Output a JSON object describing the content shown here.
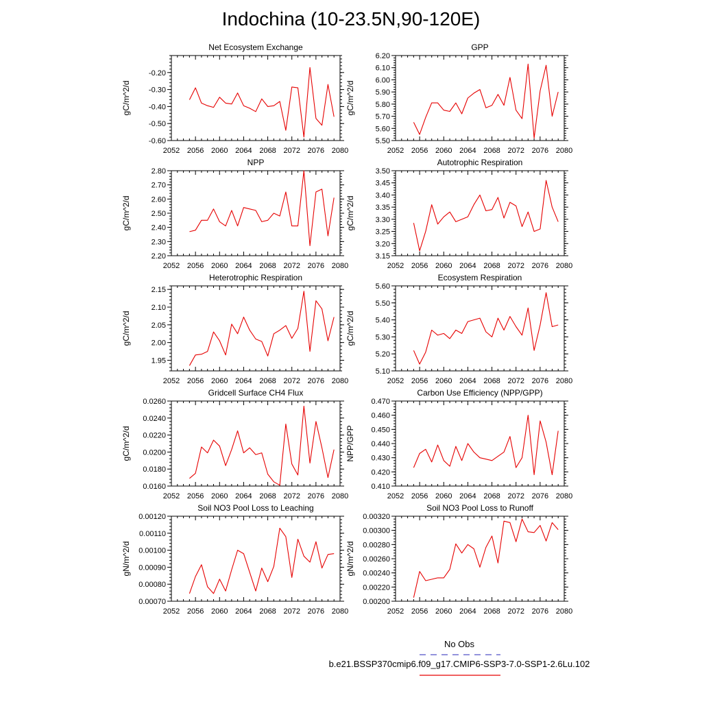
{
  "title": "Indochina (10-23.5N,90-120E)",
  "legend": {
    "obs_label": "No Obs",
    "obs_color": "#5050c8",
    "case_label": "b.e21.BSSP370cmip6.f09_g17.CMIP6-SSP3-7.0-SSP1-2.6Lu.102",
    "case_color": "#e60000"
  },
  "chart_data": [
    {
      "type": "line",
      "title": "Net Ecosystem Exchange",
      "ylabel": "gC/m^2/d",
      "xlim": [
        2052,
        2080
      ],
      "xticks": [
        "2052",
        "2056",
        "2060",
        "2064",
        "2068",
        "2072",
        "2076",
        "2080"
      ],
      "ylim": [
        -0.6,
        -0.1
      ],
      "yticks": [
        "-0.60",
        "-0.50",
        "-0.40",
        "-0.30",
        "-0.20"
      ],
      "x": [
        2055,
        2056,
        2057,
        2058,
        2059,
        2060,
        2061,
        2062,
        2063,
        2064,
        2065,
        2066,
        2067,
        2068,
        2069,
        2070,
        2071,
        2072,
        2073,
        2074,
        2075,
        2076,
        2077,
        2078,
        2079
      ],
      "series": [
        {
          "color": "#e60000",
          "values": [
            -0.36,
            -0.29,
            -0.38,
            -0.395,
            -0.405,
            -0.345,
            -0.38,
            -0.385,
            -0.32,
            -0.395,
            -0.41,
            -0.43,
            -0.355,
            -0.4,
            -0.395,
            -0.37,
            -0.54,
            -0.285,
            -0.29,
            -0.58,
            -0.17,
            -0.47,
            -0.51,
            -0.27,
            -0.46
          ]
        }
      ]
    },
    {
      "type": "line",
      "title": "GPP",
      "ylabel": "gC/m^2/d",
      "xlim": [
        2052,
        2080
      ],
      "xticks": [
        "2052",
        "2056",
        "2060",
        "2064",
        "2068",
        "2072",
        "2076",
        "2080"
      ],
      "ylim": [
        5.5,
        6.2
      ],
      "yticks": [
        "5.50",
        "5.60",
        "5.70",
        "5.80",
        "5.90",
        "6.00",
        "6.10",
        "6.20"
      ],
      "x": [
        2055,
        2056,
        2057,
        2058,
        2059,
        2060,
        2061,
        2062,
        2063,
        2064,
        2065,
        2066,
        2067,
        2068,
        2069,
        2070,
        2071,
        2072,
        2073,
        2074,
        2075,
        2076,
        2077,
        2078,
        2079
      ],
      "series": [
        {
          "color": "#e60000",
          "values": [
            5.65,
            5.55,
            5.69,
            5.81,
            5.81,
            5.75,
            5.74,
            5.81,
            5.72,
            5.85,
            5.89,
            5.92,
            5.77,
            5.79,
            5.88,
            5.79,
            6.02,
            5.75,
            5.68,
            6.13,
            5.52,
            5.91,
            6.12,
            5.7,
            5.9
          ]
        }
      ]
    },
    {
      "type": "line",
      "title": "NPP",
      "ylabel": "gC/m^2/d",
      "xlim": [
        2052,
        2080
      ],
      "xticks": [
        "2052",
        "2056",
        "2060",
        "2064",
        "2068",
        "2072",
        "2076",
        "2080"
      ],
      "ylim": [
        2.2,
        2.8
      ],
      "yticks": [
        "2.20",
        "2.30",
        "2.40",
        "2.50",
        "2.60",
        "2.70",
        "2.80"
      ],
      "x": [
        2055,
        2056,
        2057,
        2058,
        2059,
        2060,
        2061,
        2062,
        2063,
        2064,
        2065,
        2066,
        2067,
        2068,
        2069,
        2070,
        2071,
        2072,
        2073,
        2074,
        2075,
        2076,
        2077,
        2078,
        2079
      ],
      "series": [
        {
          "color": "#e60000",
          "values": [
            2.37,
            2.38,
            2.45,
            2.45,
            2.53,
            2.44,
            2.41,
            2.52,
            2.41,
            2.54,
            2.53,
            2.52,
            2.44,
            2.45,
            2.5,
            2.48,
            2.65,
            2.41,
            2.41,
            2.8,
            2.27,
            2.65,
            2.67,
            2.34,
            2.61
          ]
        }
      ]
    },
    {
      "type": "line",
      "title": "Autotrophic Respiration",
      "ylabel": "gC/m^2/d",
      "xlim": [
        2052,
        2080
      ],
      "xticks": [
        "2052",
        "2056",
        "2060",
        "2064",
        "2068",
        "2072",
        "2076",
        "2080"
      ],
      "ylim": [
        3.15,
        3.5
      ],
      "yticks": [
        "3.15",
        "3.20",
        "3.25",
        "3.30",
        "3.35",
        "3.40",
        "3.45",
        "3.50"
      ],
      "x": [
        2055,
        2056,
        2057,
        2058,
        2059,
        2060,
        2061,
        2062,
        2063,
        2064,
        2065,
        2066,
        2067,
        2068,
        2069,
        2070,
        2071,
        2072,
        2073,
        2074,
        2075,
        2076,
        2077,
        2078,
        2079
      ],
      "series": [
        {
          "color": "#e60000",
          "values": [
            3.285,
            3.17,
            3.25,
            3.36,
            3.28,
            3.31,
            3.33,
            3.29,
            3.3,
            3.31,
            3.36,
            3.4,
            3.335,
            3.34,
            3.39,
            3.305,
            3.37,
            3.355,
            3.27,
            3.33,
            3.25,
            3.26,
            3.46,
            3.35,
            3.29
          ]
        }
      ]
    },
    {
      "type": "line",
      "title": "Heterotrophic Respiration",
      "ylabel": "gC/m^2/d",
      "xlim": [
        2052,
        2080
      ],
      "xticks": [
        "2052",
        "2056",
        "2060",
        "2064",
        "2068",
        "2072",
        "2076",
        "2080"
      ],
      "ylim": [
        1.92,
        2.16
      ],
      "yticks": [
        "1.95",
        "2.00",
        "2.05",
        "2.10",
        "2.15"
      ],
      "x": [
        2055,
        2056,
        2057,
        2058,
        2059,
        2060,
        2061,
        2062,
        2063,
        2064,
        2065,
        2066,
        2067,
        2068,
        2069,
        2070,
        2071,
        2072,
        2073,
        2074,
        2075,
        2076,
        2077,
        2078,
        2079
      ],
      "series": [
        {
          "color": "#e60000",
          "values": [
            1.935,
            1.965,
            1.967,
            1.975,
            2.03,
            2.005,
            1.965,
            2.052,
            2.025,
            2.072,
            2.035,
            2.01,
            2.003,
            1.962,
            2.025,
            2.035,
            2.048,
            2.012,
            2.04,
            2.145,
            1.975,
            2.118,
            2.095,
            2.005,
            2.072
          ]
        }
      ]
    },
    {
      "type": "line",
      "title": "Ecosystem Respiration",
      "ylabel": "gC/m^2/d",
      "xlim": [
        2052,
        2080
      ],
      "xticks": [
        "2052",
        "2056",
        "2060",
        "2064",
        "2068",
        "2072",
        "2076",
        "2080"
      ],
      "ylim": [
        5.1,
        5.6
      ],
      "yticks": [
        "5.10",
        "5.20",
        "5.30",
        "5.40",
        "5.50",
        "5.60"
      ],
      "x": [
        2055,
        2056,
        2057,
        2058,
        2059,
        2060,
        2061,
        2062,
        2063,
        2064,
        2065,
        2066,
        2067,
        2068,
        2069,
        2070,
        2071,
        2072,
        2073,
        2074,
        2075,
        2076,
        2077,
        2078,
        2079
      ],
      "series": [
        {
          "color": "#e60000",
          "values": [
            5.22,
            5.14,
            5.21,
            5.34,
            5.31,
            5.32,
            5.29,
            5.34,
            5.32,
            5.39,
            5.4,
            5.41,
            5.33,
            5.3,
            5.41,
            5.34,
            5.42,
            5.36,
            5.31,
            5.47,
            5.22,
            5.37,
            5.56,
            5.36,
            5.37
          ]
        }
      ]
    },
    {
      "type": "line",
      "title": "Gridcell Surface CH4 Flux",
      "ylabel": "gC/m^2/d",
      "xlim": [
        2052,
        2080
      ],
      "xticks": [
        "2052",
        "2056",
        "2060",
        "2064",
        "2068",
        "2072",
        "2076",
        "2080"
      ],
      "ylim": [
        0.016,
        0.026
      ],
      "yticks": [
        "0.0160",
        "0.0180",
        "0.0200",
        "0.0220",
        "0.0240",
        "0.0260"
      ],
      "x": [
        2055,
        2056,
        2057,
        2058,
        2059,
        2060,
        2061,
        2062,
        2063,
        2064,
        2065,
        2066,
        2067,
        2068,
        2069,
        2070,
        2071,
        2072,
        2073,
        2074,
        2075,
        2076,
        2077,
        2078,
        2079
      ],
      "series": [
        {
          "color": "#e60000",
          "values": [
            0.0169,
            0.0175,
            0.0206,
            0.0199,
            0.0214,
            0.0207,
            0.0184,
            0.0203,
            0.0225,
            0.0199,
            0.0205,
            0.0197,
            0.0199,
            0.0174,
            0.0165,
            0.0161,
            0.0233,
            0.0186,
            0.0173,
            0.0254,
            0.0187,
            0.0236,
            0.0205,
            0.017,
            0.0203
          ]
        }
      ]
    },
    {
      "type": "line",
      "title": "Carbon Use Efficiency (NPP/GPP)",
      "ylabel": "NPP/GPP",
      "xlim": [
        2052,
        2080
      ],
      "xticks": [
        "2052",
        "2056",
        "2060",
        "2064",
        "2068",
        "2072",
        "2076",
        "2080"
      ],
      "ylim": [
        0.41,
        0.47
      ],
      "yticks": [
        "0.410",
        "0.420",
        "0.430",
        "0.440",
        "0.450",
        "0.460",
        "0.470"
      ],
      "x": [
        2055,
        2056,
        2057,
        2058,
        2059,
        2060,
        2061,
        2062,
        2063,
        2064,
        2065,
        2066,
        2067,
        2068,
        2069,
        2070,
        2071,
        2072,
        2073,
        2074,
        2075,
        2076,
        2077,
        2078,
        2079
      ],
      "series": [
        {
          "color": "#e60000",
          "values": [
            0.423,
            0.433,
            0.436,
            0.427,
            0.439,
            0.428,
            0.424,
            0.438,
            0.428,
            0.44,
            0.434,
            0.43,
            0.429,
            0.428,
            0.431,
            0.434,
            0.445,
            0.423,
            0.43,
            0.46,
            0.418,
            0.456,
            0.441,
            0.418,
            0.449
          ]
        }
      ]
    },
    {
      "type": "line",
      "title": "Soil NO3 Pool Loss to Leaching",
      "ylabel": "gN/m^2/d",
      "xlim": [
        2052,
        2080
      ],
      "xticks": [
        "2052",
        "2056",
        "2060",
        "2064",
        "2068",
        "2072",
        "2076",
        "2080"
      ],
      "ylim": [
        0.0007,
        0.0012
      ],
      "yticks": [
        "0.00070",
        "0.00080",
        "0.00090",
        "0.00100",
        "0.00110",
        "0.00120"
      ],
      "x": [
        2055,
        2056,
        2057,
        2058,
        2059,
        2060,
        2061,
        2062,
        2063,
        2064,
        2065,
        2066,
        2067,
        2068,
        2069,
        2070,
        2071,
        2072,
        2073,
        2074,
        2075,
        2076,
        2077,
        2078,
        2079
      ],
      "series": [
        {
          "color": "#e60000",
          "values": [
            0.000745,
            0.000845,
            0.000915,
            0.000785,
            0.000745,
            0.00083,
            0.00076,
            0.000885,
            0.001,
            0.00098,
            0.00087,
            0.00076,
            0.000895,
            0.000815,
            0.000905,
            0.00113,
            0.00108,
            0.00084,
            0.001065,
            0.000965,
            0.00093,
            0.00105,
            0.000895,
            0.000975,
            0.00098
          ]
        }
      ]
    },
    {
      "type": "line",
      "title": "Soil NO3 Pool Loss to Runoff",
      "ylabel": "gN/m^2/d",
      "xlim": [
        2052,
        2080
      ],
      "xticks": [
        "2052",
        "2056",
        "2060",
        "2064",
        "2068",
        "2072",
        "2076",
        "2080"
      ],
      "ylim": [
        0.002,
        0.0032
      ],
      "yticks": [
        "0.00200",
        "0.00220",
        "0.00240",
        "0.00260",
        "0.00280",
        "0.00300",
        "0.00320"
      ],
      "x": [
        2055,
        2056,
        2057,
        2058,
        2059,
        2060,
        2061,
        2062,
        2063,
        2064,
        2065,
        2066,
        2067,
        2068,
        2069,
        2070,
        2071,
        2072,
        2073,
        2074,
        2075,
        2076,
        2077,
        2078,
        2079
      ],
      "series": [
        {
          "color": "#e60000",
          "values": [
            0.00205,
            0.00242,
            0.00229,
            0.00231,
            0.00233,
            0.00233,
            0.00245,
            0.00281,
            0.00268,
            0.0028,
            0.00274,
            0.00248,
            0.00276,
            0.00292,
            0.00254,
            0.00313,
            0.00311,
            0.00284,
            0.00316,
            0.00298,
            0.00297,
            0.00307,
            0.00285,
            0.00311,
            0.00301
          ]
        }
      ]
    }
  ]
}
